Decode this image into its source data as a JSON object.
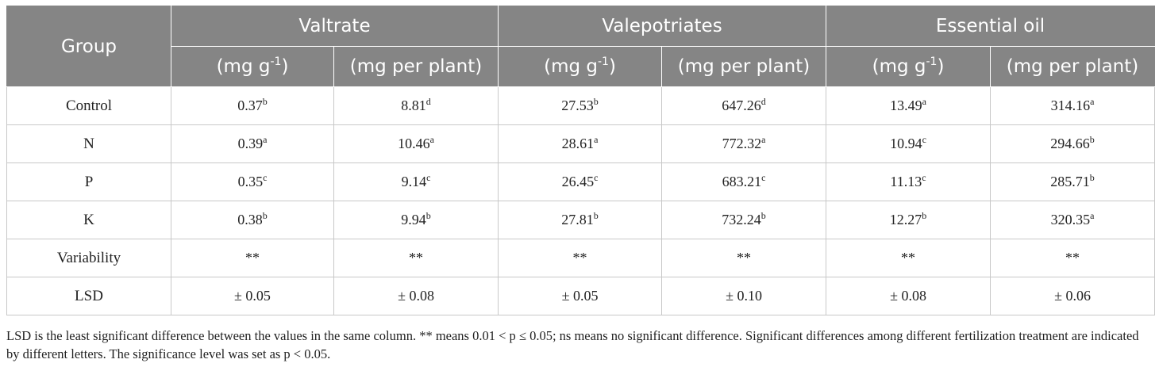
{
  "table": {
    "headers": {
      "group": "Group",
      "groups": [
        {
          "label": "Valtrate"
        },
        {
          "label": "Valepotriates"
        },
        {
          "label": "Essential oil"
        }
      ],
      "units": [
        {
          "text": "(mg g",
          "sup": "-1",
          "tail": ")"
        },
        {
          "text": "(mg per plant)",
          "sup": "",
          "tail": ""
        },
        {
          "text": "(mg g",
          "sup": "-1",
          "tail": ")"
        },
        {
          "text": "(mg per plant)",
          "sup": "",
          "tail": ""
        },
        {
          "text": "(mg g",
          "sup": "-1",
          "tail": ")"
        },
        {
          "text": "(mg per plant)",
          "sup": "",
          "tail": ""
        }
      ]
    },
    "rows": [
      {
        "label": "Control",
        "cells": [
          {
            "value": "0.37",
            "letter": "b"
          },
          {
            "value": "8.81",
            "letter": "d"
          },
          {
            "value": "27.53",
            "letter": "b"
          },
          {
            "value": "647.26",
            "letter": "d"
          },
          {
            "value": "13.49",
            "letter": "a"
          },
          {
            "value": "314.16",
            "letter": "a"
          }
        ]
      },
      {
        "label": "N",
        "cells": [
          {
            "value": "0.39",
            "letter": "a"
          },
          {
            "value": "10.46",
            "letter": "a"
          },
          {
            "value": "28.61",
            "letter": "a"
          },
          {
            "value": "772.32",
            "letter": "a"
          },
          {
            "value": "10.94",
            "letter": "c"
          },
          {
            "value": "294.66",
            "letter": "b"
          }
        ]
      },
      {
        "label": "P",
        "cells": [
          {
            "value": "0.35",
            "letter": "c"
          },
          {
            "value": "9.14",
            "letter": "c"
          },
          {
            "value": "26.45",
            "letter": "c"
          },
          {
            "value": "683.21",
            "letter": "c"
          },
          {
            "value": "11.13",
            "letter": "c"
          },
          {
            "value": "285.71",
            "letter": "b"
          }
        ]
      },
      {
        "label": "K",
        "cells": [
          {
            "value": "0.38",
            "letter": "b"
          },
          {
            "value": "9.94",
            "letter": "b"
          },
          {
            "value": "27.81",
            "letter": "b"
          },
          {
            "value": "732.24",
            "letter": "b"
          },
          {
            "value": "12.27",
            "letter": "b"
          },
          {
            "value": "320.35",
            "letter": "a"
          }
        ]
      },
      {
        "label": "Variability",
        "cells": [
          {
            "value": "**",
            "letter": ""
          },
          {
            "value": "**",
            "letter": ""
          },
          {
            "value": "**",
            "letter": ""
          },
          {
            "value": "**",
            "letter": ""
          },
          {
            "value": "**",
            "letter": ""
          },
          {
            "value": "**",
            "letter": ""
          }
        ]
      },
      {
        "label": "LSD",
        "cells": [
          {
            "value": "± 0.05",
            "letter": ""
          },
          {
            "value": "± 0.08",
            "letter": ""
          },
          {
            "value": "± 0.05",
            "letter": ""
          },
          {
            "value": "± 0.10",
            "letter": ""
          },
          {
            "value": "± 0.08",
            "letter": ""
          },
          {
            "value": "± 0.06",
            "letter": ""
          }
        ]
      }
    ]
  },
  "footnote": "LSD is the least significant difference between the values in the same column. ** means 0.01 < p ≤ 0.05; ns means no significant difference. Significant differences among different fertilization treatment are indicated by different letters. The significance level was set as p < 0.05.",
  "colors": {
    "header_bg": "#858585",
    "header_text": "#ffffff",
    "grid": "#c8c8c8"
  }
}
